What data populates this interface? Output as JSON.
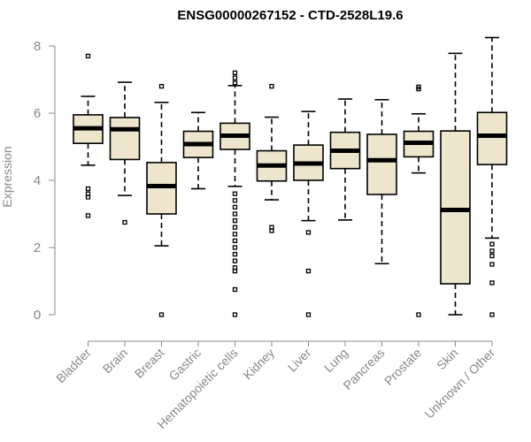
{
  "chart_data": {
    "type": "box",
    "title": "ENSG00000267152 - CTD-2528L19.6",
    "xlabel": "",
    "ylabel": "Expression",
    "ylim": [
      0,
      8.4
    ],
    "yticks": [
      0,
      2,
      4,
      6,
      8
    ],
    "box_fill": "#ede6cc",
    "categories": [
      "Bladder",
      "Brain",
      "Breast",
      "Gastric",
      "Hematopoietic cells",
      "Kidney",
      "Liver",
      "Lung",
      "Pancreas",
      "Prostate",
      "Skin",
      "Unknown / Other"
    ],
    "boxes": [
      {
        "lower": 4.45,
        "q1": 5.1,
        "median": 5.55,
        "q3": 5.95,
        "upper": 6.5,
        "outliers": [
          7.7,
          3.75,
          3.6,
          3.5,
          2.95
        ]
      },
      {
        "lower": 3.55,
        "q1": 4.62,
        "median": 5.52,
        "q3": 5.87,
        "upper": 6.92,
        "outliers": [
          2.75
        ]
      },
      {
        "lower": 2.05,
        "q1": 3.0,
        "median": 3.83,
        "q3": 4.53,
        "upper": 6.32,
        "outliers": [
          6.8,
          0.0
        ]
      },
      {
        "lower": 3.75,
        "q1": 4.68,
        "median": 5.08,
        "q3": 5.46,
        "upper": 6.02,
        "outliers": []
      },
      {
        "lower": 3.82,
        "q1": 4.92,
        "median": 5.33,
        "q3": 5.7,
        "upper": 6.82,
        "outliers": [
          7.2,
          7.05,
          6.9,
          3.6,
          3.4,
          3.2,
          3.0,
          2.8,
          2.6,
          2.4,
          2.2,
          2.0,
          1.8,
          1.6,
          1.4,
          1.3,
          0.75,
          0.0
        ]
      },
      {
        "lower": 3.42,
        "q1": 3.98,
        "median": 4.44,
        "q3": 4.88,
        "upper": 5.88,
        "outliers": [
          6.8,
          2.6,
          2.5
        ]
      },
      {
        "lower": 2.8,
        "q1": 4.0,
        "median": 4.5,
        "q3": 5.05,
        "upper": 6.05,
        "outliers": [
          2.45,
          1.3,
          0.0
        ]
      },
      {
        "lower": 2.82,
        "q1": 4.35,
        "median": 4.88,
        "q3": 5.43,
        "upper": 6.42,
        "outliers": []
      },
      {
        "lower": 1.52,
        "q1": 3.58,
        "median": 4.6,
        "q3": 5.37,
        "upper": 6.4,
        "outliers": []
      },
      {
        "lower": 4.22,
        "q1": 4.7,
        "median": 5.12,
        "q3": 5.46,
        "upper": 5.98,
        "outliers": [
          6.78,
          6.72,
          0.0
        ]
      },
      {
        "lower": 0.0,
        "q1": 0.92,
        "median": 3.12,
        "q3": 5.47,
        "upper": 7.78,
        "outliers": []
      },
      {
        "lower": 2.28,
        "q1": 4.47,
        "median": 5.33,
        "q3": 6.02,
        "upper": 8.25,
        "outliers": [
          2.1,
          1.9,
          1.75,
          1.5,
          0.95,
          0.0
        ]
      }
    ]
  }
}
